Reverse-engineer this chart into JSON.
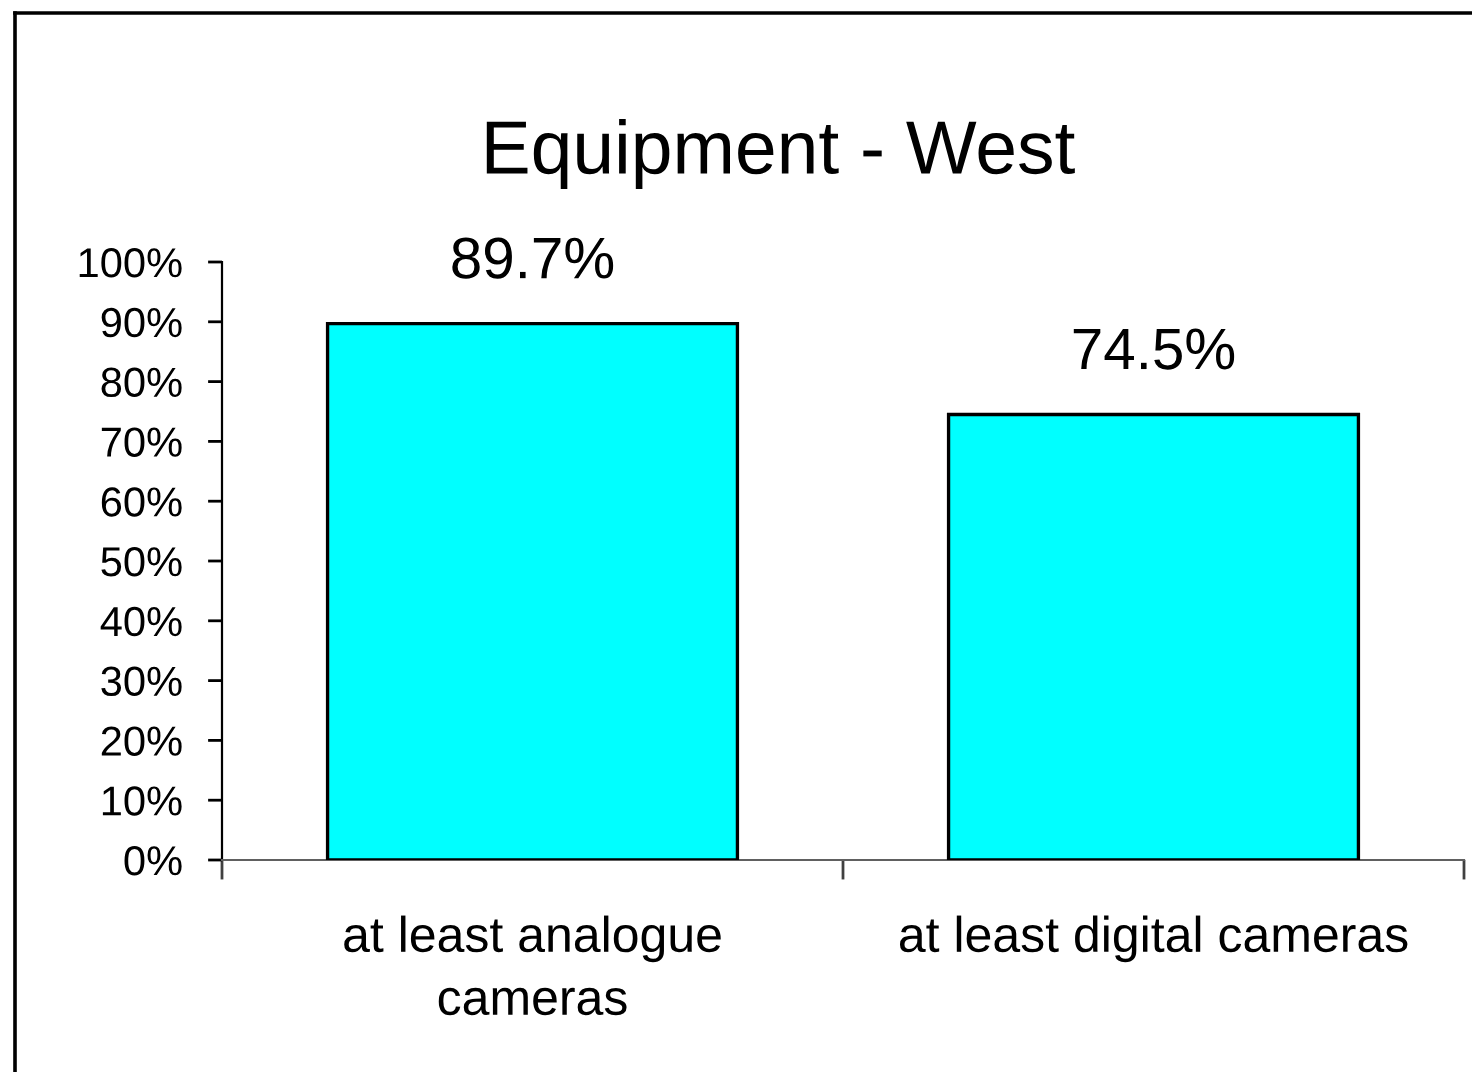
{
  "chart_data": {
    "type": "bar",
    "title": "Equipment - West",
    "categories": [
      "at least analogue\ncameras",
      "at least digital cameras"
    ],
    "values": [
      89.7,
      74.5
    ],
    "value_labels": [
      "89.7%",
      "74.5%"
    ],
    "color": "#00ffff",
    "ylim": [
      0,
      100
    ],
    "yticks": [
      {
        "value": 0,
        "label": "0%"
      },
      {
        "value": 10,
        "label": "10%"
      },
      {
        "value": 20,
        "label": "20%"
      },
      {
        "value": 30,
        "label": "30%"
      },
      {
        "value": 40,
        "label": "40%"
      },
      {
        "value": 50,
        "label": "50%"
      },
      {
        "value": 60,
        "label": "60%"
      },
      {
        "value": 70,
        "label": "70%"
      },
      {
        "value": 80,
        "label": "80%"
      },
      {
        "value": 90,
        "label": "90%"
      },
      {
        "value": 100,
        "label": "100%"
      }
    ]
  }
}
